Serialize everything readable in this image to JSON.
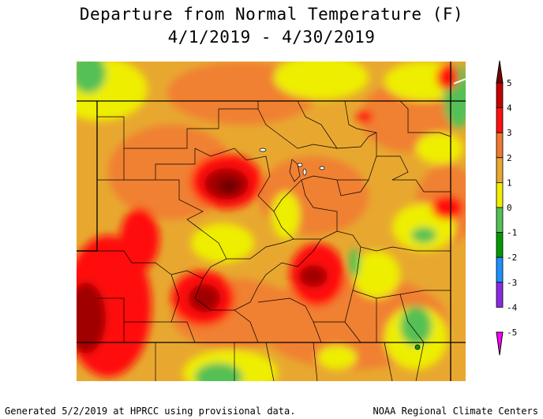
{
  "title": {
    "line1": "Departure from Normal Temperature (F)",
    "line2": "4/1/2019 - 4/30/2019"
  },
  "legend": {
    "ticks": [
      "5",
      "4",
      "3",
      "2",
      "1",
      "0",
      "-1",
      "-2",
      "-3",
      "-4",
      "-5"
    ],
    "colors": [
      "#7a0000",
      "#c40000",
      "#ff1010",
      "#f07830",
      "#e8a830",
      "#eeee00",
      "#55c055",
      "#009a00",
      "#1e90ff",
      "#8a2be2",
      "#ff00ff"
    ]
  },
  "map": {
    "background_color": "#e8a830"
  },
  "footer": {
    "left": "Generated 5/2/2019 at HPRCC using provisional data.",
    "right": "NOAA Regional Climate Centers"
  }
}
